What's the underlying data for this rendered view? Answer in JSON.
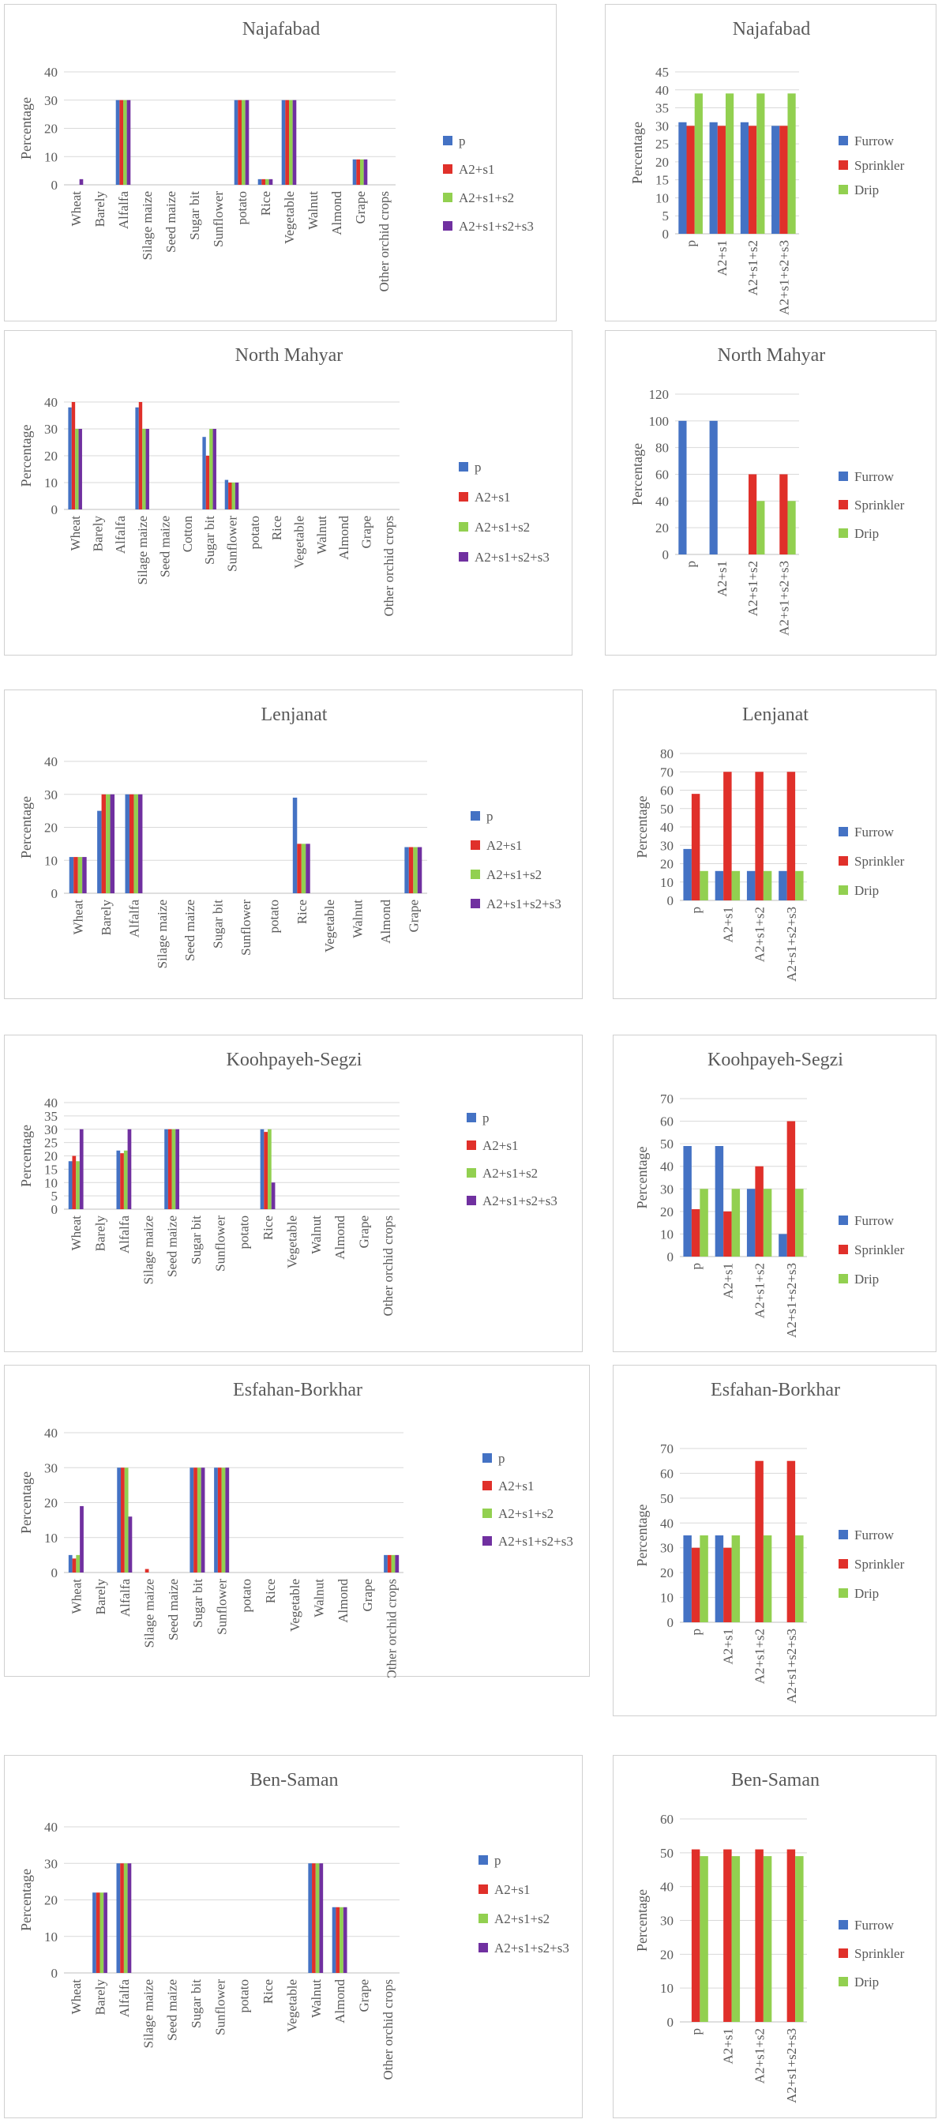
{
  "colors": {
    "c1": "#4472C4",
    "c2": "#E0302A",
    "c3": "#92D050",
    "c4": "#7030A0",
    "furrow": "#4472C4",
    "sprinkler": "#E0302A",
    "drip": "#92D050"
  },
  "chart_data": [
    {
      "type": "bar",
      "title": "Najafabad",
      "ylabel": "Percentage",
      "ylim": [
        0,
        40
      ],
      "ticks": [
        0,
        10,
        20,
        30,
        40
      ],
      "categories": [
        "Wheat",
        "Barely",
        "Alfalfa",
        "Silage maize",
        "Seed maize",
        "Sugar bit",
        "Sunflower",
        "potato",
        "Rice",
        "Vegetable",
        "Walnut",
        "Almond",
        "Grape",
        "Other orchid crops"
      ],
      "series": [
        {
          "name": "p",
          "values": [
            0,
            0,
            30,
            0,
            0,
            0,
            0,
            30,
            2,
            30,
            0,
            0,
            9,
            0
          ]
        },
        {
          "name": "A2+s1",
          "values": [
            0,
            0,
            30,
            0,
            0,
            0,
            0,
            30,
            2,
            30,
            0,
            0,
            9,
            0
          ]
        },
        {
          "name": "A2+s1+s2",
          "values": [
            0,
            0,
            30,
            0,
            0,
            0,
            0,
            30,
            2,
            30,
            0,
            0,
            9,
            0
          ]
        },
        {
          "name": "A2+s1+s2+s3",
          "values": [
            2,
            0,
            30,
            0,
            0,
            0,
            0,
            30,
            2,
            30,
            0,
            0,
            9,
            0
          ]
        }
      ]
    },
    {
      "type": "bar",
      "title": "Najafabad",
      "ylabel": "Percentage",
      "ylim": [
        0,
        45
      ],
      "ticks": [
        0,
        5,
        10,
        15,
        20,
        25,
        30,
        35,
        40,
        45
      ],
      "categories": [
        "p",
        "A2+s1",
        "A2+s1+s2",
        "A2+s1+s2+s3"
      ],
      "series": [
        {
          "name": "Furrow",
          "values": [
            31,
            31,
            31,
            30
          ]
        },
        {
          "name": "Sprinkler",
          "values": [
            30,
            30,
            30,
            30
          ]
        },
        {
          "name": "Drip",
          "values": [
            39,
            39,
            39,
            39
          ]
        }
      ]
    },
    {
      "type": "bar",
      "title": "North Mahyar",
      "ylabel": "Percentage",
      "ylim": [
        0,
        40
      ],
      "ticks": [
        0,
        10,
        20,
        30,
        40
      ],
      "categories": [
        "Wheat",
        "Barely",
        "Alfalfa",
        "Silage maize",
        "Seed maize",
        "Cotton",
        "Sugar bit",
        "Sunflower",
        "potato",
        "Rice",
        "Vegetable",
        "Walnut",
        "Almond",
        "Grape",
        "Other orchid crops"
      ],
      "series": [
        {
          "name": "p",
          "values": [
            38,
            0,
            0,
            38,
            0,
            0,
            27,
            11,
            0,
            0,
            0,
            0,
            0,
            0,
            0
          ]
        },
        {
          "name": "A2+s1",
          "values": [
            40,
            0,
            0,
            40,
            0,
            0,
            20,
            10,
            0,
            0,
            0,
            0,
            0,
            0,
            0
          ]
        },
        {
          "name": "A2+s1+s2",
          "values": [
            30,
            0,
            0,
            30,
            0,
            0,
            30,
            10,
            0,
            0,
            0,
            0,
            0,
            0,
            0
          ]
        },
        {
          "name": "A2+s1+s2+s3",
          "values": [
            30,
            0,
            0,
            30,
            0,
            0,
            30,
            10,
            0,
            0,
            0,
            0,
            0,
            0,
            0
          ]
        }
      ]
    },
    {
      "type": "bar",
      "title": "North Mahyar",
      "ylabel": "Percentage",
      "ylim": [
        0,
        120
      ],
      "ticks": [
        0,
        20,
        40,
        60,
        80,
        100,
        120
      ],
      "categories": [
        "p",
        "A2+s1",
        "A2+s1+s2",
        "A2+s1+s2+s3"
      ],
      "series": [
        {
          "name": "Furrow",
          "values": [
            100,
            100,
            0,
            0
          ]
        },
        {
          "name": "Sprinkler",
          "values": [
            0,
            0,
            60,
            60
          ]
        },
        {
          "name": "Drip",
          "values": [
            0,
            0,
            40,
            40
          ]
        }
      ]
    },
    {
      "type": "bar",
      "title": "Lenjanat",
      "ylabel": "Percentage",
      "ylim": [
        0,
        40
      ],
      "ticks": [
        0,
        10,
        20,
        30,
        40
      ],
      "categories": [
        "Wheat",
        "Barely",
        "Alfalfa",
        "Silage maize",
        "Seed maize",
        "Sugar bit",
        "Sunflower",
        "potato",
        "Rice",
        "Vegetable",
        "Walnut",
        "Almond",
        "Grape"
      ],
      "series": [
        {
          "name": "p",
          "values": [
            11,
            25,
            30,
            0,
            0,
            0,
            0,
            0,
            29,
            0,
            0,
            0,
            14
          ]
        },
        {
          "name": "A2+s1",
          "values": [
            11,
            30,
            30,
            0,
            0,
            0,
            0,
            0,
            15,
            0,
            0,
            0,
            14
          ]
        },
        {
          "name": "A2+s1+s2",
          "values": [
            11,
            30,
            30,
            0,
            0,
            0,
            0,
            0,
            15,
            0,
            0,
            0,
            14
          ]
        },
        {
          "name": "A2+s1+s2+s3",
          "values": [
            11,
            30,
            30,
            0,
            0,
            0,
            0,
            0,
            15,
            0,
            0,
            0,
            14
          ]
        }
      ]
    },
    {
      "type": "bar",
      "title": "Lenjanat",
      "ylabel": "Percentage",
      "ylim": [
        0,
        80
      ],
      "ticks": [
        0,
        10,
        20,
        30,
        40,
        50,
        60,
        70,
        80
      ],
      "categories": [
        "p",
        "A2+s1",
        "A2+s1+s2",
        "A2+s1+s2+s3"
      ],
      "series": [
        {
          "name": "Furrow",
          "values": [
            28,
            16,
            16,
            16
          ]
        },
        {
          "name": "Sprinkler",
          "values": [
            58,
            70,
            70,
            70
          ]
        },
        {
          "name": "Drip",
          "values": [
            16,
            16,
            16,
            16
          ]
        }
      ]
    },
    {
      "type": "bar",
      "title": "Koohpayeh-Segzi",
      "ylabel": "Percentage",
      "ylim": [
        0,
        40
      ],
      "ticks": [
        0,
        5,
        10,
        15,
        20,
        25,
        30,
        35,
        40
      ],
      "categories": [
        "Wheat",
        "Barely",
        "Alfalfa",
        "Silage maize",
        "Seed maize",
        "Sugar bit",
        "Sunflower",
        "potato",
        "Rice",
        "Vegetable",
        "Walnut",
        "Almond",
        "Grape",
        "Other orchid crops"
      ],
      "series": [
        {
          "name": "p",
          "values": [
            18,
            0,
            22,
            0,
            30,
            0,
            0,
            0,
            30,
            0,
            0,
            0,
            0,
            0
          ]
        },
        {
          "name": "A2+s1",
          "values": [
            20,
            0,
            21,
            0,
            30,
            0,
            0,
            0,
            29,
            0,
            0,
            0,
            0,
            0
          ]
        },
        {
          "name": "A2+s1+s2",
          "values": [
            18,
            0,
            22,
            0,
            30,
            0,
            0,
            0,
            30,
            0,
            0,
            0,
            0,
            0
          ]
        },
        {
          "name": "A2+s1+s2+s3",
          "values": [
            30,
            0,
            30,
            0,
            30,
            0,
            0,
            0,
            10,
            0,
            0,
            0,
            0,
            0
          ]
        }
      ]
    },
    {
      "type": "bar",
      "title": "Koohpayeh-Segzi",
      "ylabel": "Percentage",
      "ylim": [
        0,
        70
      ],
      "ticks": [
        0,
        10,
        20,
        30,
        40,
        50,
        60,
        70
      ],
      "categories": [
        "p",
        "A2+s1",
        "A2+s1+s2",
        "A2+s1+s2+s3"
      ],
      "series": [
        {
          "name": "Furrow",
          "values": [
            49,
            49,
            30,
            10
          ]
        },
        {
          "name": "Sprinkler",
          "values": [
            21,
            20,
            40,
            60
          ]
        },
        {
          "name": "Drip",
          "values": [
            30,
            30,
            30,
            30
          ]
        }
      ]
    },
    {
      "type": "bar",
      "title": "Esfahan-Borkhar",
      "ylabel": "Percentage",
      "ylim": [
        0,
        40
      ],
      "ticks": [
        0,
        10,
        20,
        30,
        40
      ],
      "categories": [
        "Wheat",
        "Barely",
        "Alfalfa",
        "Silage maize",
        "Seed maize",
        "Sugar bit",
        "Sunflower",
        "potato",
        "Rice",
        "Vegetable",
        "Walnut",
        "Almond",
        "Grape",
        "Other orchid crops"
      ],
      "series": [
        {
          "name": "p",
          "values": [
            5,
            0,
            30,
            0,
            0,
            30,
            30,
            0,
            0,
            0,
            0,
            0,
            0,
            5
          ]
        },
        {
          "name": "A2+s1",
          "values": [
            4,
            0,
            30,
            1,
            0,
            30,
            30,
            0,
            0,
            0,
            0,
            0,
            0,
            5
          ]
        },
        {
          "name": "A2+s1+s2",
          "values": [
            5,
            0,
            30,
            0,
            0,
            30,
            30,
            0,
            0,
            0,
            0,
            0,
            0,
            5
          ]
        },
        {
          "name": "A2+s1+s2+s3",
          "values": [
            19,
            0,
            16,
            0,
            0,
            30,
            30,
            0,
            0,
            0,
            0,
            0,
            0,
            5
          ]
        }
      ]
    },
    {
      "type": "bar",
      "title": "Esfahan-Borkhar",
      "ylabel": "Percentage",
      "ylim": [
        0,
        70
      ],
      "ticks": [
        0,
        10,
        20,
        30,
        40,
        50,
        60,
        70
      ],
      "categories": [
        "p",
        "A2+s1",
        "A2+s1+s2",
        "A2+s1+s2+s3"
      ],
      "series": [
        {
          "name": "Furrow",
          "values": [
            35,
            35,
            0,
            0
          ]
        },
        {
          "name": "Sprinkler",
          "values": [
            30,
            30,
            65,
            65
          ]
        },
        {
          "name": "Drip",
          "values": [
            35,
            35,
            35,
            35
          ]
        }
      ]
    },
    {
      "type": "bar",
      "title": "Ben-Saman",
      "ylabel": "Percentage",
      "ylim": [
        0,
        40
      ],
      "ticks": [
        0,
        10,
        20,
        30,
        40
      ],
      "categories": [
        "Wheat",
        "Barely",
        "Alfalfa",
        "Silage maize",
        "Seed maize",
        "Sugar bit",
        "Sunflower",
        "potato",
        "Rice",
        "Vegetable",
        "Walnut",
        "Almond",
        "Grape",
        "Other orchid crops"
      ],
      "series": [
        {
          "name": "p",
          "values": [
            0,
            22,
            30,
            0,
            0,
            0,
            0,
            0,
            0,
            0,
            30,
            18,
            0,
            0
          ]
        },
        {
          "name": "A2+s1",
          "values": [
            0,
            22,
            30,
            0,
            0,
            0,
            0,
            0,
            0,
            0,
            30,
            18,
            0,
            0
          ]
        },
        {
          "name": "A2+s1+s2",
          "values": [
            0,
            22,
            30,
            0,
            0,
            0,
            0,
            0,
            0,
            0,
            30,
            18,
            0,
            0
          ]
        },
        {
          "name": "A2+s1+s2+s3",
          "values": [
            0,
            22,
            30,
            0,
            0,
            0,
            0,
            0,
            0,
            0,
            30,
            18,
            0,
            0
          ]
        }
      ]
    },
    {
      "type": "bar",
      "title": "Ben-Saman",
      "ylabel": "Percentage",
      "ylim": [
        0,
        60
      ],
      "ticks": [
        0,
        10,
        20,
        30,
        40,
        50,
        60
      ],
      "categories": [
        "p",
        "A2+s1",
        "A2+s1+s2",
        "A2+s1+s2+s3"
      ],
      "series": [
        {
          "name": "Furrow",
          "values": [
            0,
            0,
            0,
            0
          ]
        },
        {
          "name": "Sprinkler",
          "values": [
            51,
            51,
            51,
            51
          ]
        },
        {
          "name": "Drip",
          "values": [
            49,
            49,
            49,
            49
          ]
        }
      ]
    }
  ]
}
